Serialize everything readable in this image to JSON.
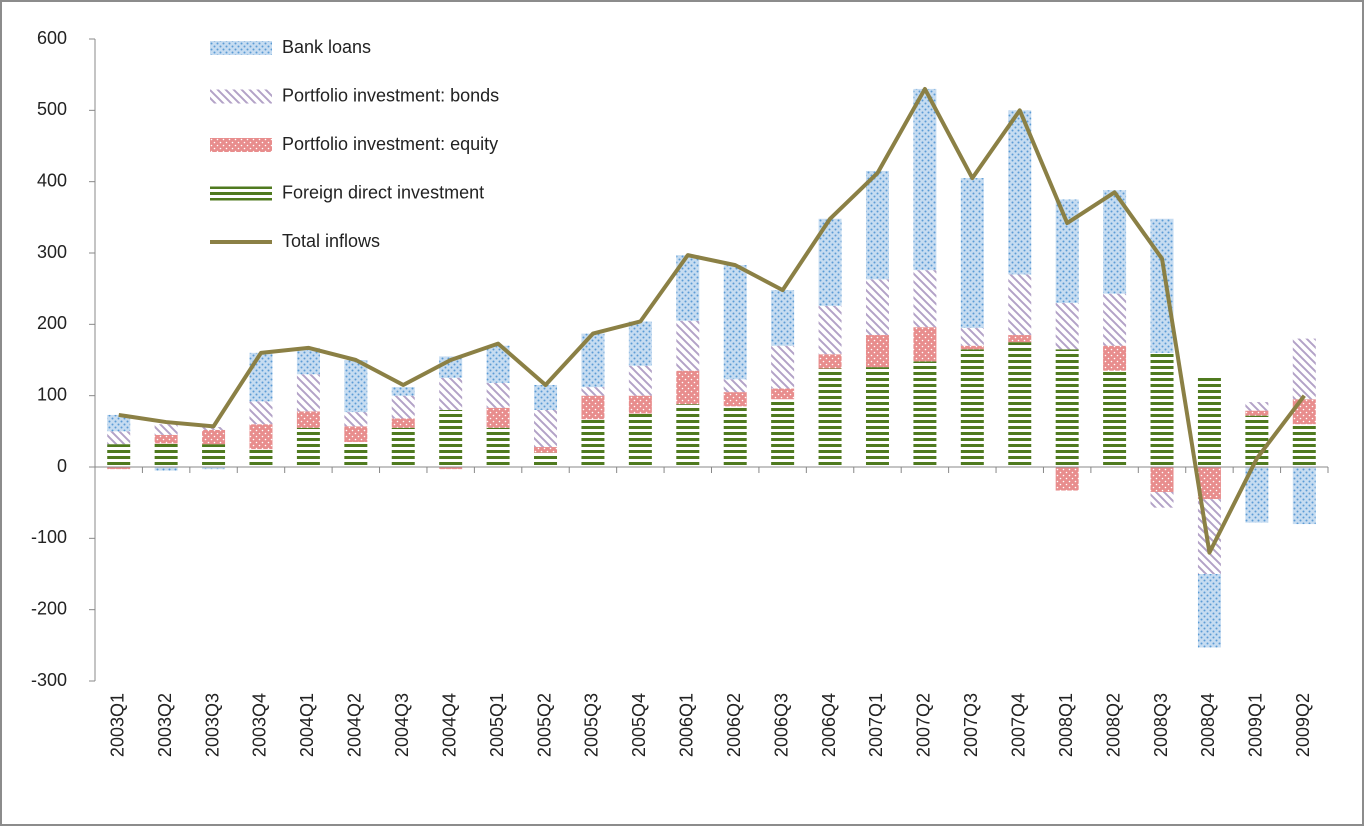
{
  "chart_data": {
    "type": "bar",
    "stacked": true,
    "categories": [
      "2003Q1",
      "2003Q2",
      "2003Q3",
      "2003Q4",
      "2004Q1",
      "2004Q2",
      "2004Q3",
      "2004Q4",
      "2005Q1",
      "2005Q2",
      "2005Q3",
      "2005Q4",
      "2006Q1",
      "2006Q2",
      "2006Q3",
      "2006Q4",
      "2007Q1",
      "2007Q2",
      "2007Q3",
      "2007Q4",
      "2008Q1",
      "2008Q2",
      "2008Q3",
      "2008Q4",
      "2009Q1",
      "2009Q2"
    ],
    "series": [
      {
        "name": "Bank loans",
        "color": "#5b9bd5",
        "values": [
          23,
          -5,
          -3,
          68,
          37,
          73,
          12,
          30,
          52,
          35,
          75,
          62,
          92,
          160,
          78,
          122,
          152,
          254,
          210,
          230,
          145,
          145,
          188,
          -103,
          -78,
          -80
        ]
      },
      {
        "name": "Portfolio investment: bonds",
        "color": "#8064a2",
        "values": [
          18,
          15,
          4,
          32,
          52,
          20,
          32,
          45,
          35,
          52,
          12,
          42,
          70,
          18,
          60,
          68,
          78,
          80,
          25,
          85,
          65,
          73,
          -22,
          -105,
          12,
          85
        ]
      },
      {
        "name": "Portfolio investment: equity",
        "color": "#e06666",
        "values": [
          -3,
          12,
          20,
          35,
          23,
          22,
          13,
          -3,
          28,
          8,
          33,
          25,
          47,
          20,
          15,
          20,
          45,
          48,
          5,
          10,
          -33,
          35,
          -35,
          -45,
          7,
          35
        ]
      },
      {
        "name": "Foreign direct investment",
        "color": "#4f7a1f",
        "values": [
          32,
          33,
          32,
          25,
          55,
          35,
          55,
          80,
          55,
          20,
          67,
          75,
          88,
          85,
          95,
          138,
          140,
          148,
          165,
          175,
          165,
          135,
          160,
          128,
          72,
          60
        ]
      },
      {
        "name": "Total inflows",
        "type": "line",
        "color": "#8b8045",
        "values": [
          73,
          63,
          57,
          160,
          167,
          150,
          115,
          150,
          173,
          115,
          187,
          204,
          297,
          283,
          248,
          348,
          412,
          530,
          405,
          500,
          342,
          385,
          292,
          -120,
          12,
          100
        ]
      }
    ],
    "ylim": [
      -300,
      600
    ],
    "yticks": [
      -300,
      -200,
      -100,
      0,
      100,
      200,
      300,
      400,
      500,
      600
    ],
    "grid": false,
    "legend": "upper left"
  }
}
